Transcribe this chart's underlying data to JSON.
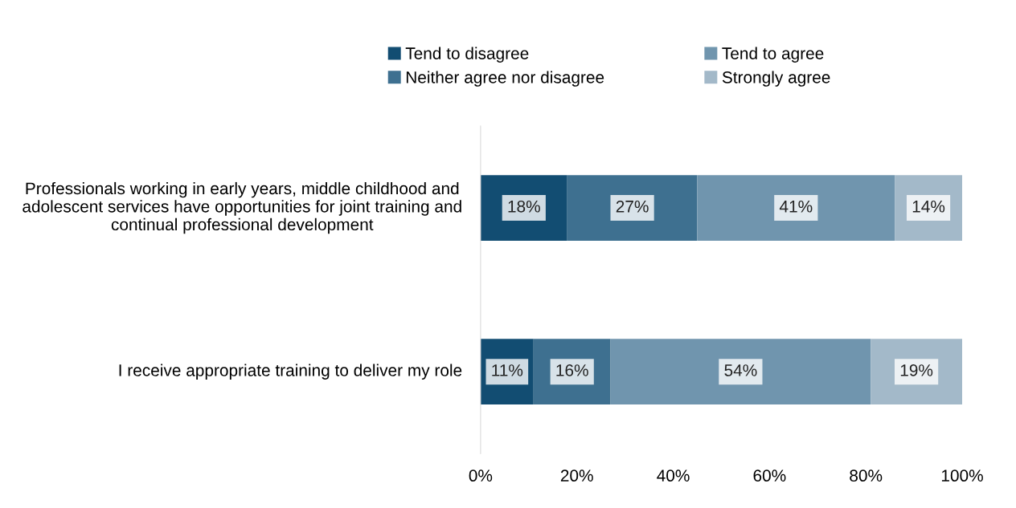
{
  "chart_data": {
    "type": "bar",
    "orientation": "horizontal",
    "stacked": true,
    "legend": "top",
    "grid": false,
    "categories": [
      "Professionals working in early years, middle childhood and adolescent services have opportunities for joint training and continual professional development",
      "I receive appropriate training to deliver my role"
    ],
    "series": [
      {
        "name": "Tend to disagree",
        "color": "#124d72",
        "values": [
          18,
          11
        ],
        "value_labels": [
          "18%",
          "11%"
        ]
      },
      {
        "name": "Neither agree nor disagree",
        "color": "#3e7090",
        "values": [
          27,
          16
        ],
        "value_labels": [
          "27%",
          "16%"
        ]
      },
      {
        "name": "Tend to agree",
        "color": "#7095ae",
        "values": [
          41,
          54
        ],
        "value_labels": [
          "41%",
          "54%"
        ]
      },
      {
        "name": "Strongly agree",
        "color": "#a3b9c9",
        "values": [
          14,
          19
        ],
        "value_labels": [
          "14%",
          "19%"
        ]
      }
    ],
    "xlim": [
      0,
      100
    ],
    "xticks": [
      {
        "value": 0,
        "label": "0%"
      },
      {
        "value": 20,
        "label": "20%"
      },
      {
        "value": 40,
        "label": "40%"
      },
      {
        "value": 60,
        "label": "60%"
      },
      {
        "value": 80,
        "label": "80%"
      },
      {
        "value": 100,
        "label": "100%"
      }
    ]
  }
}
